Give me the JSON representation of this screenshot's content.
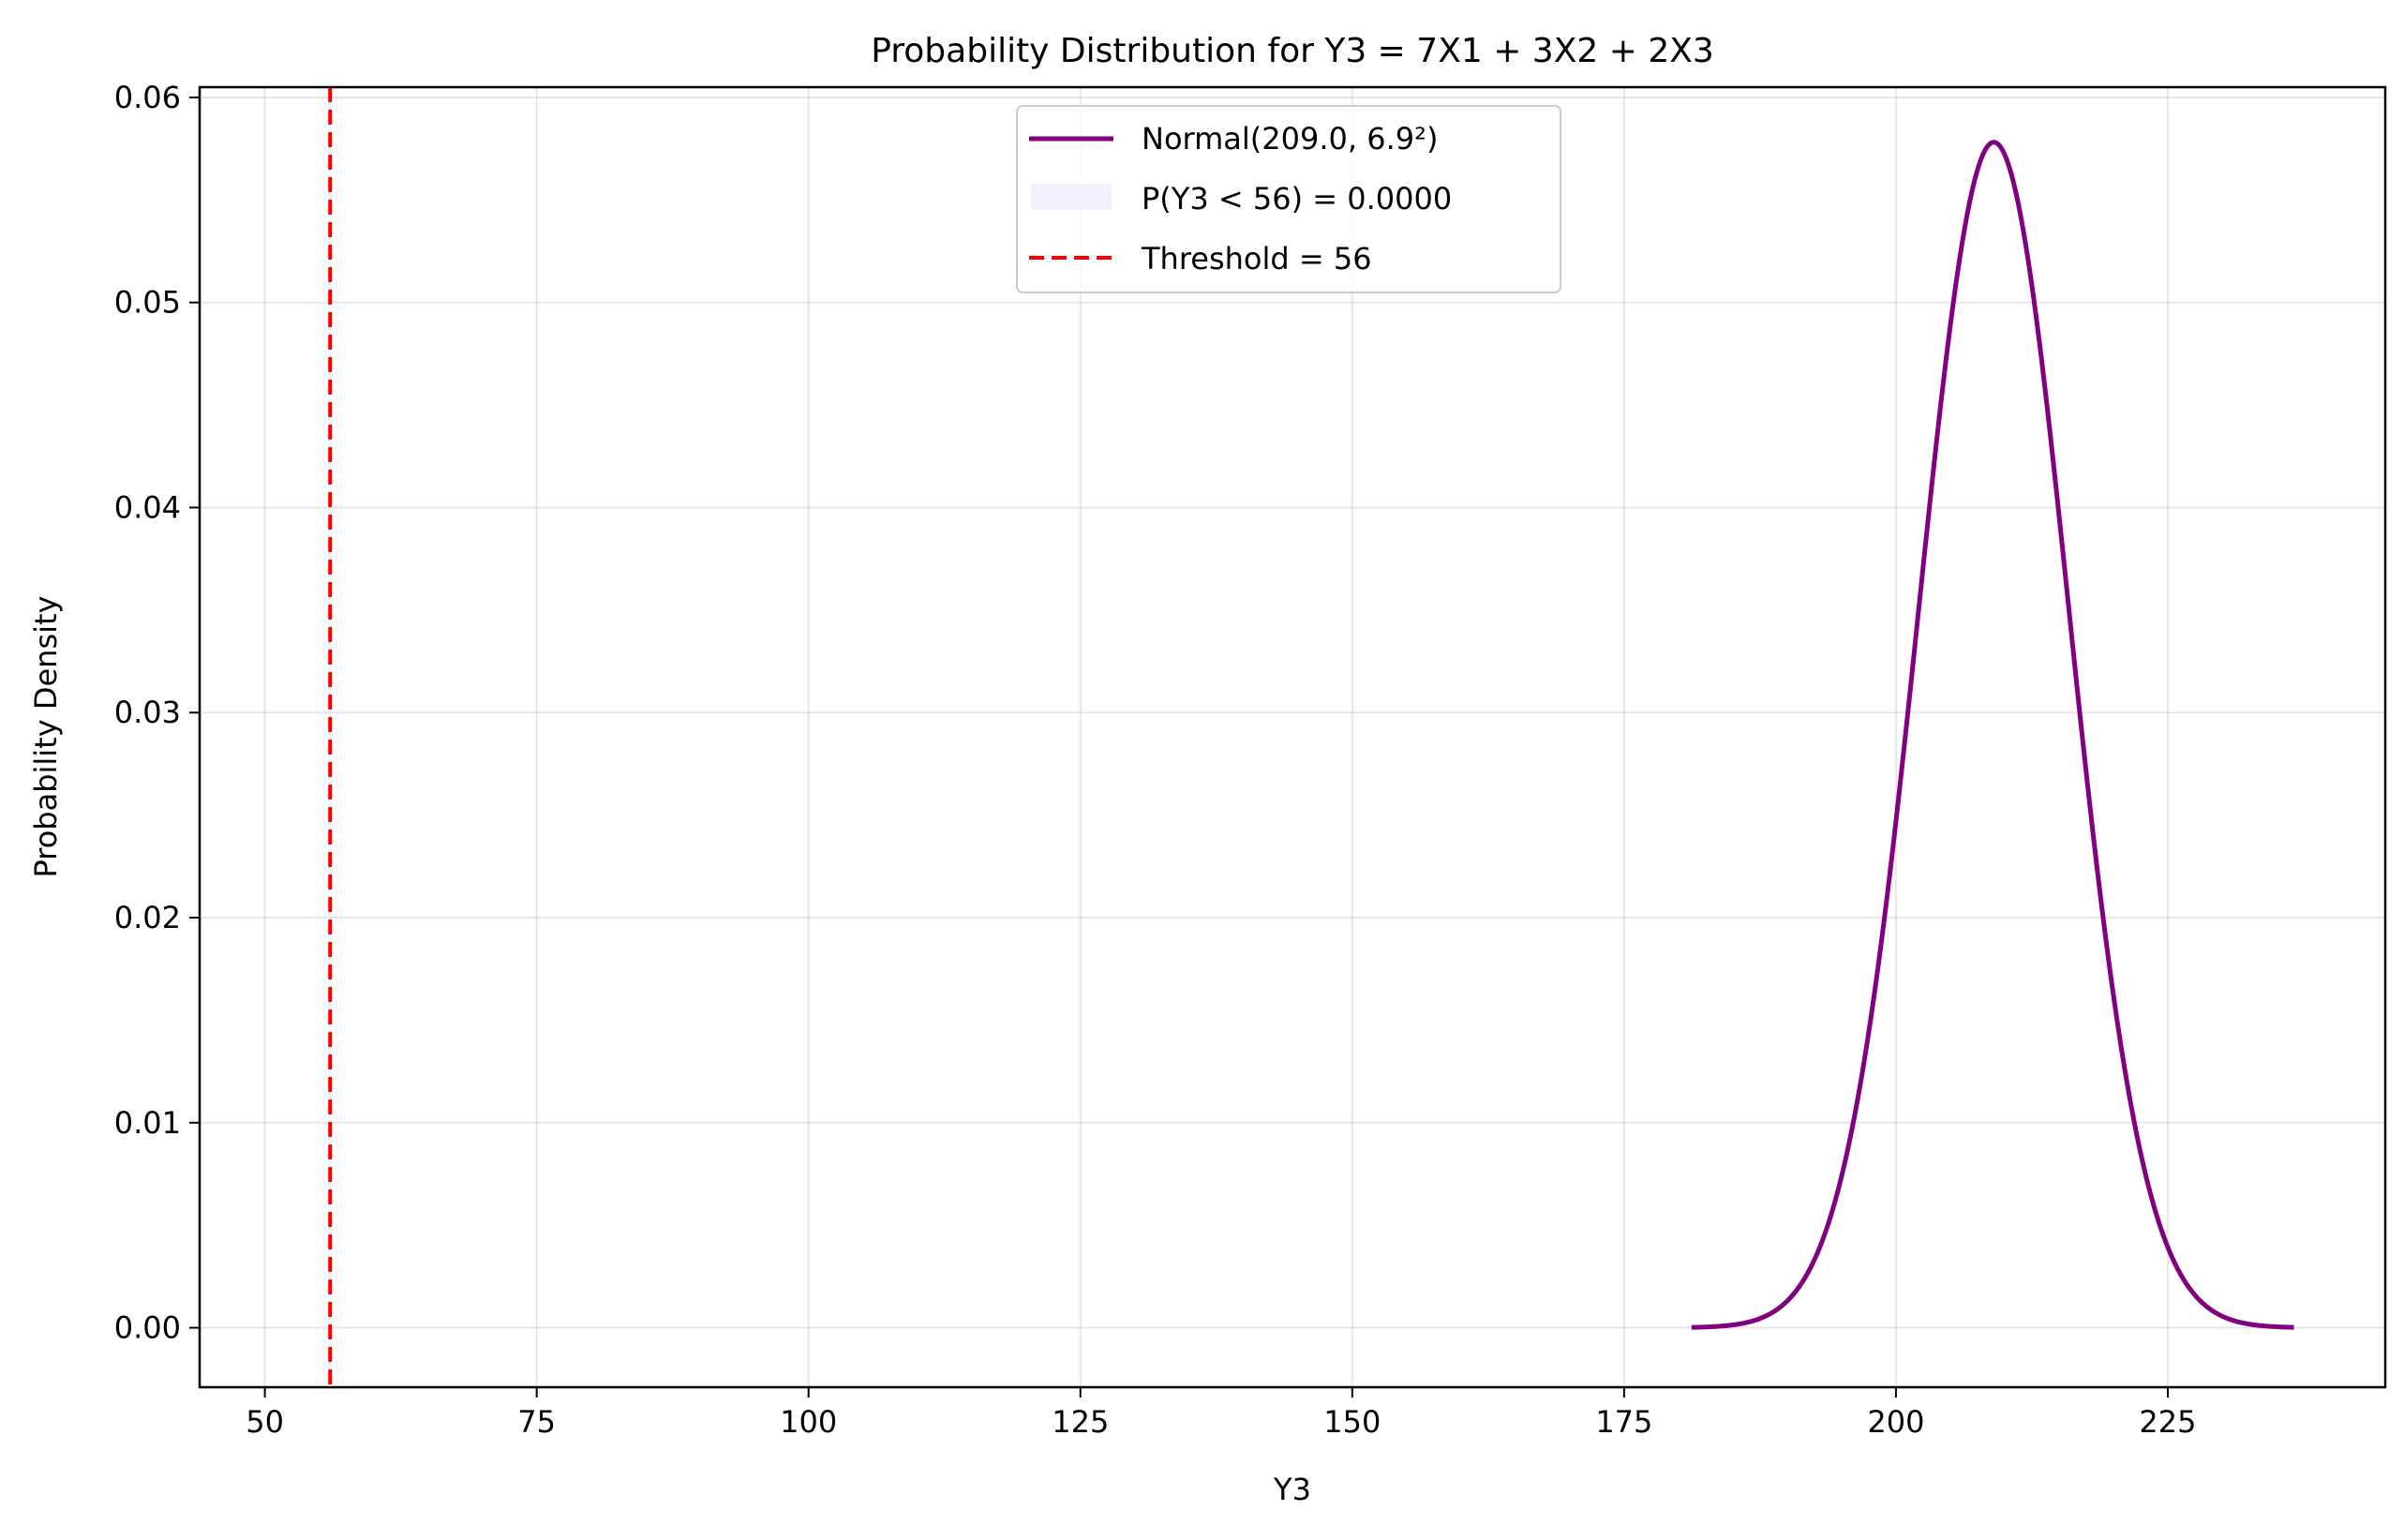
{
  "chart_data": {
    "type": "line",
    "title": "Probability Distribution for Y3 = 7X1 + 3X2 + 2X3",
    "xlabel": "Y3",
    "ylabel": "Probability Density",
    "xlim": [
      44,
      245
    ],
    "ylim": [
      -0.0029,
      0.0605
    ],
    "x_ticks": [
      50,
      75,
      100,
      125,
      150,
      175,
      200,
      225
    ],
    "x_tick_labels": [
      "50",
      "75",
      "100",
      "125",
      "150",
      "175",
      "200",
      "225"
    ],
    "y_ticks": [
      0.0,
      0.01,
      0.02,
      0.03,
      0.04,
      0.05,
      0.06
    ],
    "y_tick_labels": [
      "0.00",
      "0.01",
      "0.02",
      "0.03",
      "0.04",
      "0.05",
      "0.06"
    ],
    "grid": true,
    "legend_position": "top-center",
    "series": [
      {
        "name": "Normal(209.0, 6.9²)",
        "kind": "line",
        "color": "#800080",
        "distribution": "normal",
        "mean": 209.0,
        "std": 6.9,
        "x_range": [
          181.2,
          236.6
        ]
      },
      {
        "name": "P(Y3 < 56) = 0.0000",
        "kind": "area",
        "color": "#e6e6fa",
        "x_range": [
          181.2,
          56
        ],
        "value": 0.0
      },
      {
        "name": "Threshold = 56",
        "kind": "vline",
        "color": "#ff0000",
        "x": 56
      }
    ]
  }
}
